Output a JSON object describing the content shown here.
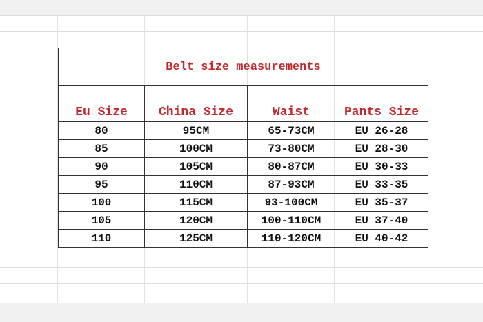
{
  "table": {
    "title": "Belt size measurements",
    "headers": [
      "Eu Size",
      "China Size",
      "Waist",
      "Pants Size"
    ],
    "rows": [
      [
        "80",
        "95CM",
        "65-73CM",
        "EU 26-28"
      ],
      [
        "85",
        "100CM",
        "73-80CM",
        "EU 28-30"
      ],
      [
        "90",
        "105CM",
        "80-87CM",
        "EU 30-33"
      ],
      [
        "95",
        "110CM",
        "87-93CM",
        "EU 33-35"
      ],
      [
        "100",
        "115CM",
        "93-100CM",
        "EU 35-37"
      ],
      [
        "105",
        "120CM",
        "100-110CM",
        "EU 37-40"
      ],
      [
        "110",
        "125CM",
        "110-120CM",
        "EU 40-42"
      ]
    ]
  },
  "colors": {
    "header_text": "#c0282d",
    "body_text": "#111111",
    "grid": "#dcdcdc"
  }
}
